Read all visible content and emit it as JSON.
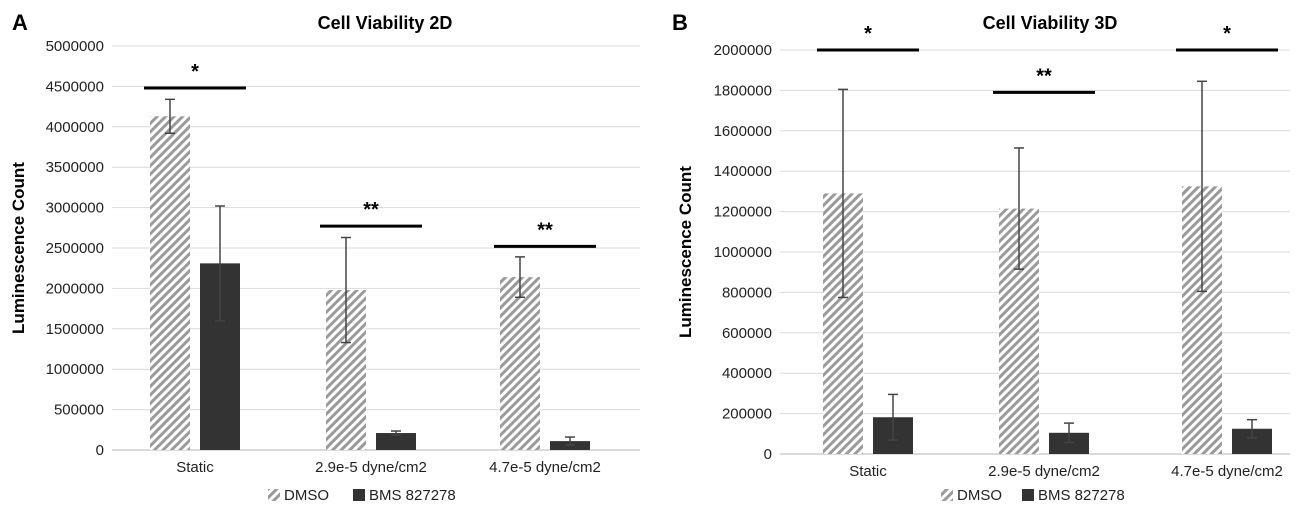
{
  "panels": [
    {
      "letter": "A"
    },
    {
      "letter": "B"
    }
  ],
  "chart_data": [
    {
      "type": "bar",
      "title": "Cell Viability 2D",
      "xlabel": "",
      "ylabel": "Luminescence Count",
      "ylim": [
        0,
        5000000
      ],
      "yticks": [
        "0",
        "500000",
        "1000000",
        "1500000",
        "2000000",
        "2500000",
        "3000000",
        "3500000",
        "4000000",
        "4500000",
        "5000000"
      ],
      "grid": true,
      "legend": "bottom",
      "categories": [
        "Static",
        "2.9e-5 dyne/cm2",
        "4.7e-5 dyne/cm2"
      ],
      "series": [
        {
          "name": "DMSO",
          "pattern": "hatched",
          "color": "#9a9a9a",
          "values": [
            4130000,
            1980000,
            2140000
          ],
          "errors": [
            210000,
            650000,
            250000
          ]
        },
        {
          "name": "BMS 827278",
          "pattern": "solid",
          "color": "#333333",
          "values": [
            2310000,
            210000,
            110000
          ],
          "errors": [
            710000,
            25000,
            50000
          ]
        }
      ],
      "significance": [
        {
          "label": "*",
          "category": 0,
          "level": 4480000
        },
        {
          "label": "**",
          "category": 1,
          "level": 2770000
        },
        {
          "label": "**",
          "category": 2,
          "level": 2520000
        }
      ]
    },
    {
      "type": "bar",
      "title": "Cell Viability 3D",
      "xlabel": "",
      "ylabel": "Luminescence Count",
      "ylim": [
        0,
        2000000
      ],
      "yticks": [
        "0",
        "200000",
        "400000",
        "600000",
        "800000",
        "1000000",
        "1200000",
        "1400000",
        "1600000",
        "1800000",
        "2000000"
      ],
      "grid": true,
      "legend": "bottom",
      "categories": [
        "Static",
        "2.9e-5 dyne/cm2",
        "4.7e-5 dyne/cm2"
      ],
      "series": [
        {
          "name": "DMSO",
          "pattern": "hatched",
          "color": "#9a9a9a",
          "values": [
            1290000,
            1215000,
            1325000
          ],
          "errors": [
            515000,
            300000,
            520000
          ]
        },
        {
          "name": "BMS 827278",
          "pattern": "solid",
          "color": "#333333",
          "values": [
            182000,
            105000,
            125000
          ],
          "errors": [
            113000,
            48000,
            45000
          ]
        }
      ],
      "significance": [
        {
          "label": "*",
          "category": 0,
          "level": 2000000
        },
        {
          "label": "**",
          "category": 1,
          "level": 1790000
        },
        {
          "label": "*",
          "category": 2,
          "level": 2000000
        }
      ]
    }
  ]
}
